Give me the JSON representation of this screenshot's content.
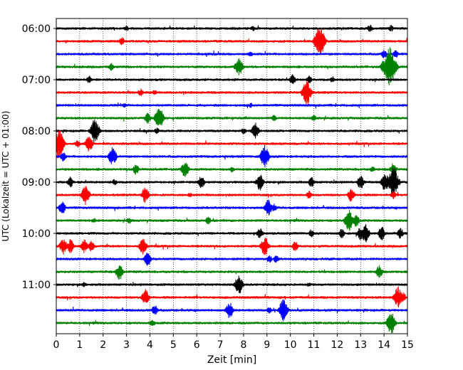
{
  "chart_data": {
    "type": "line",
    "title": "",
    "xlabel": "Zeit  [min]",
    "ylabel": "UTC (Lokalzeit = UTC + 01:00)",
    "xlim": [
      0,
      15
    ],
    "xticks": [
      0,
      1,
      2,
      3,
      4,
      5,
      6,
      7,
      8,
      9,
      10,
      11,
      12,
      13,
      14,
      15
    ],
    "yticks": [
      "06:00",
      "07:00",
      "08:00",
      "09:00",
      "10:00",
      "11:00"
    ],
    "grid": "vertical dotted",
    "line_interval_min": 15,
    "colors": [
      "#000000",
      "#ff0000",
      "#0000ff",
      "#008000"
    ],
    "traces": [
      {
        "start": "06:00",
        "color": "#000000",
        "events": [
          [
            3.0,
            4
          ],
          [
            8.4,
            4
          ],
          [
            13.4,
            6
          ],
          [
            14.3,
            5
          ]
        ]
      },
      {
        "start": "06:15",
        "color": "#ff0000",
        "events": [
          [
            2.8,
            6
          ],
          [
            11.25,
            22
          ]
        ]
      },
      {
        "start": "06:30",
        "color": "#0000ff",
        "events": [
          [
            8.3,
            4
          ],
          [
            14.0,
            7
          ],
          [
            14.5,
            6
          ]
        ]
      },
      {
        "start": "06:45",
        "color": "#008000",
        "events": [
          [
            2.35,
            6
          ],
          [
            7.8,
            14
          ],
          [
            14.25,
            28
          ],
          [
            14.0,
            10
          ]
        ]
      },
      {
        "start": "07:00",
        "color": "#000000",
        "events": [
          [
            1.4,
            6
          ],
          [
            10.1,
            8
          ],
          [
            10.8,
            6
          ],
          [
            11.8,
            5
          ]
        ]
      },
      {
        "start": "07:15",
        "color": "#ff0000",
        "events": [
          [
            3.6,
            6
          ],
          [
            10.7,
            18
          ],
          [
            4.2,
            4
          ]
        ]
      },
      {
        "start": "07:30",
        "color": "#0000ff",
        "events": [
          [
            2.9,
            4
          ],
          [
            8.3,
            4
          ]
        ]
      },
      {
        "start": "07:45",
        "color": "#008000",
        "events": [
          [
            3.9,
            8
          ],
          [
            4.4,
            16
          ],
          [
            9.3,
            5
          ],
          [
            11.0,
            5
          ]
        ]
      },
      {
        "start": "08:00",
        "color": "#000000",
        "events": [
          [
            1.65,
            18
          ],
          [
            8.5,
            12
          ],
          [
            8.0,
            5
          ],
          [
            4.3,
            5
          ]
        ]
      },
      {
        "start": "08:15",
        "color": "#ff0000",
        "events": [
          [
            0.1,
            22
          ],
          [
            1.4,
            12
          ],
          [
            0.9,
            6
          ]
        ]
      },
      {
        "start": "08:30",
        "color": "#0000ff",
        "events": [
          [
            0.3,
            7
          ],
          [
            2.4,
            14
          ],
          [
            8.9,
            16
          ]
        ]
      },
      {
        "start": "08:45",
        "color": "#008000",
        "events": [
          [
            3.4,
            8
          ],
          [
            5.5,
            12
          ],
          [
            7.5,
            5
          ],
          [
            13.5,
            5
          ],
          [
            14.4,
            10
          ]
        ]
      },
      {
        "start": "09:00",
        "color": "#000000",
        "events": [
          [
            0.6,
            8
          ],
          [
            2.5,
            5
          ],
          [
            6.2,
            10
          ],
          [
            8.7,
            12
          ],
          [
            10.9,
            8
          ],
          [
            13.0,
            10
          ],
          [
            14.05,
            14
          ],
          [
            14.4,
            22
          ]
        ]
      },
      {
        "start": "09:15",
        "color": "#ff0000",
        "events": [
          [
            1.25,
            14
          ],
          [
            3.8,
            12
          ],
          [
            5.7,
            4
          ],
          [
            10.8,
            6
          ],
          [
            12.6,
            10
          ],
          [
            14.4,
            6
          ]
        ]
      },
      {
        "start": "09:30",
        "color": "#0000ff",
        "events": [
          [
            0.25,
            10
          ],
          [
            9.05,
            12
          ],
          [
            9.3,
            6
          ]
        ]
      },
      {
        "start": "09:45",
        "color": "#008000",
        "events": [
          [
            1.6,
            4
          ],
          [
            3.1,
            5
          ],
          [
            6.5,
            6
          ],
          [
            12.5,
            16
          ],
          [
            12.8,
            10
          ]
        ]
      },
      {
        "start": "10:00",
        "color": "#000000",
        "events": [
          [
            8.7,
            8
          ],
          [
            10.9,
            6
          ],
          [
            12.2,
            7
          ],
          [
            13.0,
            10
          ],
          [
            13.2,
            14
          ],
          [
            13.9,
            10
          ],
          [
            14.7,
            8
          ]
        ]
      },
      {
        "start": "10:15",
        "color": "#ff0000",
        "events": [
          [
            0.3,
            12
          ],
          [
            0.6,
            10
          ],
          [
            1.2,
            10
          ],
          [
            1.5,
            8
          ],
          [
            3.7,
            12
          ],
          [
            8.9,
            14
          ],
          [
            10.2,
            8
          ]
        ]
      },
      {
        "start": "10:30",
        "color": "#0000ff",
        "events": [
          [
            3.9,
            10
          ],
          [
            9.1,
            6
          ],
          [
            9.4,
            6
          ]
        ]
      },
      {
        "start": "10:45",
        "color": "#008000",
        "events": [
          [
            2.7,
            12
          ],
          [
            13.8,
            10
          ]
        ]
      },
      {
        "start": "11:00",
        "color": "#000000",
        "events": [
          [
            7.8,
            14
          ],
          [
            1.2,
            4
          ],
          [
            10.8,
            4
          ]
        ]
      },
      {
        "start": "11:15",
        "color": "#ff0000",
        "events": [
          [
            3.8,
            12
          ],
          [
            14.6,
            16
          ],
          [
            14.8,
            8
          ]
        ]
      },
      {
        "start": "11:30",
        "color": "#0000ff",
        "events": [
          [
            4.2,
            8
          ],
          [
            7.4,
            12
          ],
          [
            9.1,
            5
          ],
          [
            9.7,
            16
          ]
        ]
      },
      {
        "start": "11:45",
        "color": "#008000",
        "events": [
          [
            4.1,
            6
          ],
          [
            14.3,
            16
          ]
        ]
      }
    ]
  }
}
